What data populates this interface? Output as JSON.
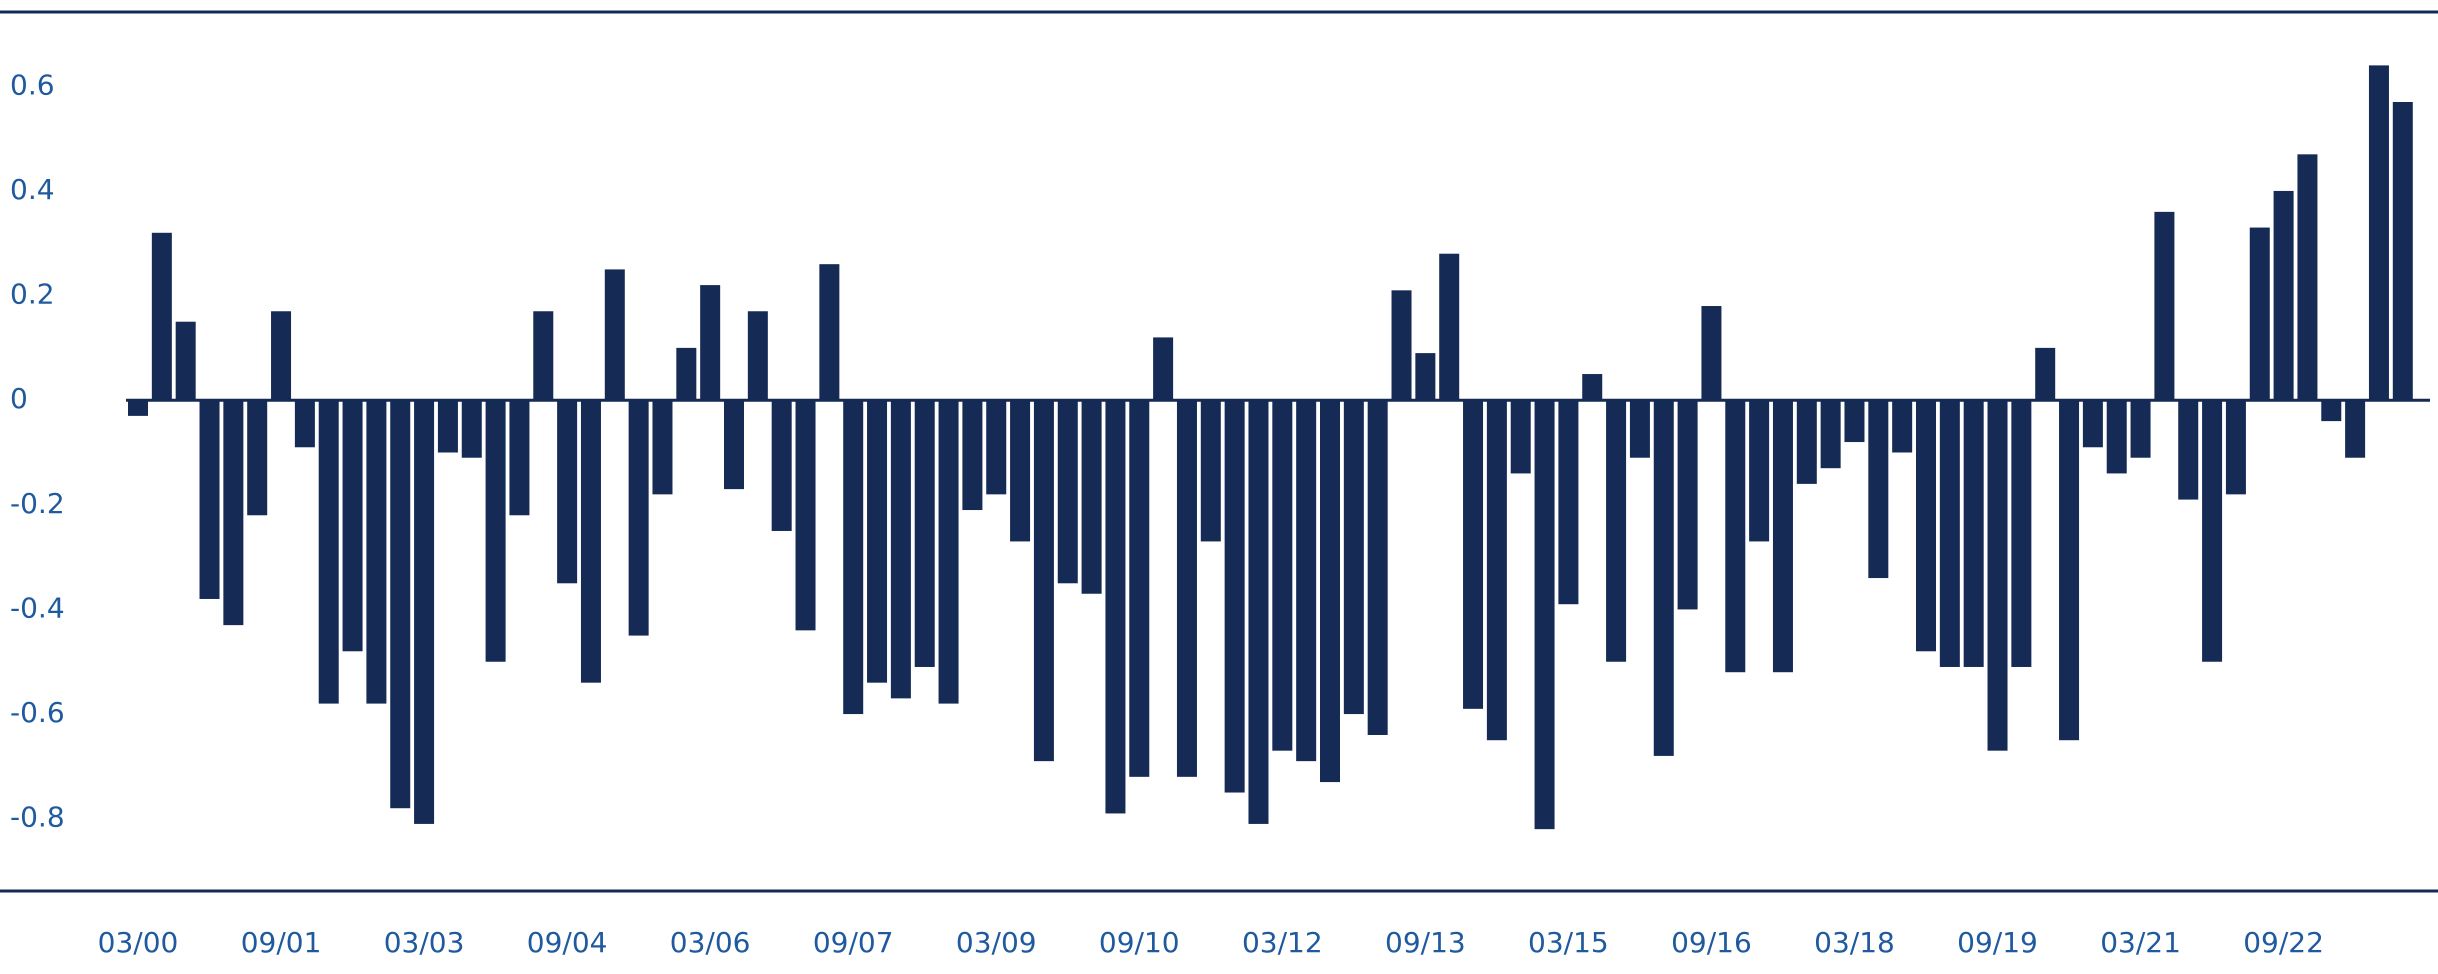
{
  "chart_data": {
    "type": "bar",
    "categories": [
      "03/00",
      null,
      null,
      null,
      null,
      null,
      "09/01",
      null,
      null,
      null,
      null,
      null,
      "03/03",
      null,
      null,
      null,
      null,
      null,
      "09/04",
      null,
      null,
      null,
      null,
      null,
      "03/06",
      null,
      null,
      null,
      null,
      null,
      "09/07",
      null,
      null,
      null,
      null,
      null,
      "03/09",
      null,
      null,
      null,
      null,
      null,
      "09/10",
      null,
      null,
      null,
      null,
      null,
      "03/12",
      null,
      null,
      null,
      null,
      null,
      "09/13",
      null,
      null,
      null,
      null,
      null,
      "03/15",
      null,
      null,
      null,
      null,
      null,
      "09/16",
      null,
      null,
      null,
      null,
      null,
      "03/18",
      null,
      null,
      null,
      null,
      null,
      "09/19",
      null,
      null,
      null,
      null,
      null,
      "03/21",
      null,
      null,
      null,
      null,
      null,
      "09/22",
      null,
      null,
      null,
      null,
      null
    ],
    "values": [
      -0.03,
      0.32,
      0.15,
      -0.38,
      -0.43,
      -0.22,
      0.17,
      -0.09,
      -0.58,
      -0.48,
      -0.58,
      -0.78,
      -0.81,
      -0.1,
      -0.11,
      -0.5,
      -0.22,
      0.17,
      -0.35,
      -0.54,
      0.25,
      -0.45,
      -0.18,
      0.1,
      0.22,
      -0.17,
      0.17,
      -0.25,
      -0.44,
      0.26,
      -0.6,
      -0.54,
      -0.57,
      -0.51,
      -0.58,
      -0.21,
      -0.18,
      -0.27,
      -0.69,
      -0.35,
      -0.37,
      -0.79,
      -0.72,
      0.12,
      -0.72,
      -0.27,
      -0.75,
      -0.81,
      -0.67,
      -0.69,
      -0.73,
      -0.6,
      -0.64,
      0.21,
      0.09,
      0.28,
      -0.59,
      -0.65,
      -0.14,
      -0.82,
      -0.39,
      0.05,
      -0.5,
      -0.11,
      -0.68,
      -0.4,
      0.18,
      -0.52,
      -0.27,
      -0.52,
      -0.16,
      -0.13,
      -0.08,
      -0.34,
      -0.1,
      -0.48,
      -0.51,
      -0.51,
      -0.67,
      -0.51,
      0.1,
      -0.65,
      -0.09,
      -0.14,
      -0.11,
      0.36,
      -0.19,
      -0.5,
      -0.18,
      0.33,
      0.4,
      0.47,
      -0.04,
      -0.11,
      0.64,
      0.57
    ],
    "color": "#152a55",
    "ylim": [
      -0.9,
      0.7
    ],
    "yticks": [
      -0.8,
      -0.6,
      -0.4,
      -0.2,
      0,
      0.2,
      0.4,
      0.6
    ],
    "grid": false
  }
}
